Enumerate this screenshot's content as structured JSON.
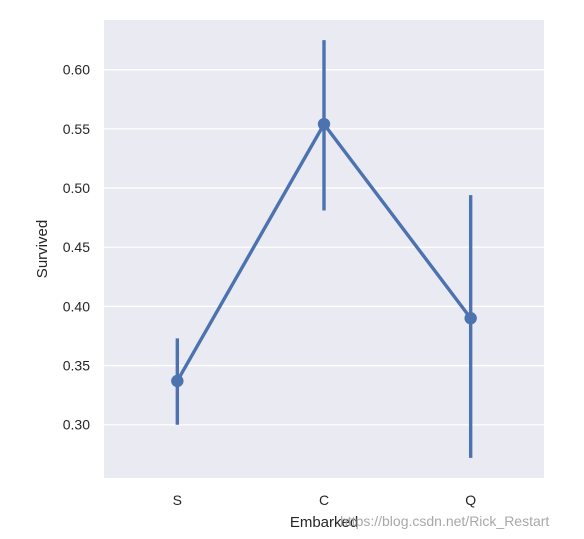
{
  "chart_data": {
    "type": "line",
    "style": "point-plot-with-error-bars",
    "categories": [
      "S",
      "C",
      "Q"
    ],
    "values": [
      0.337,
      0.554,
      0.39
    ],
    "error_low": [
      0.3,
      0.481,
      0.272
    ],
    "error_high": [
      0.373,
      0.625,
      0.494
    ],
    "yticks": [
      0.3,
      0.35,
      0.4,
      0.45,
      0.5,
      0.55,
      0.6
    ],
    "ytick_labels": [
      "0.30",
      "0.35",
      "0.40",
      "0.45",
      "0.50",
      "0.55",
      "0.60"
    ],
    "ylim": [
      0.255,
      0.642
    ],
    "xlabel": "Embarked",
    "ylabel": "Survived",
    "grid": "horizontal",
    "colors": {
      "series": "#4c72b0",
      "background": "#eaeaf2",
      "grid": "#ffffff"
    }
  },
  "watermark": "https://blog.csdn.net/Rick_Restart"
}
